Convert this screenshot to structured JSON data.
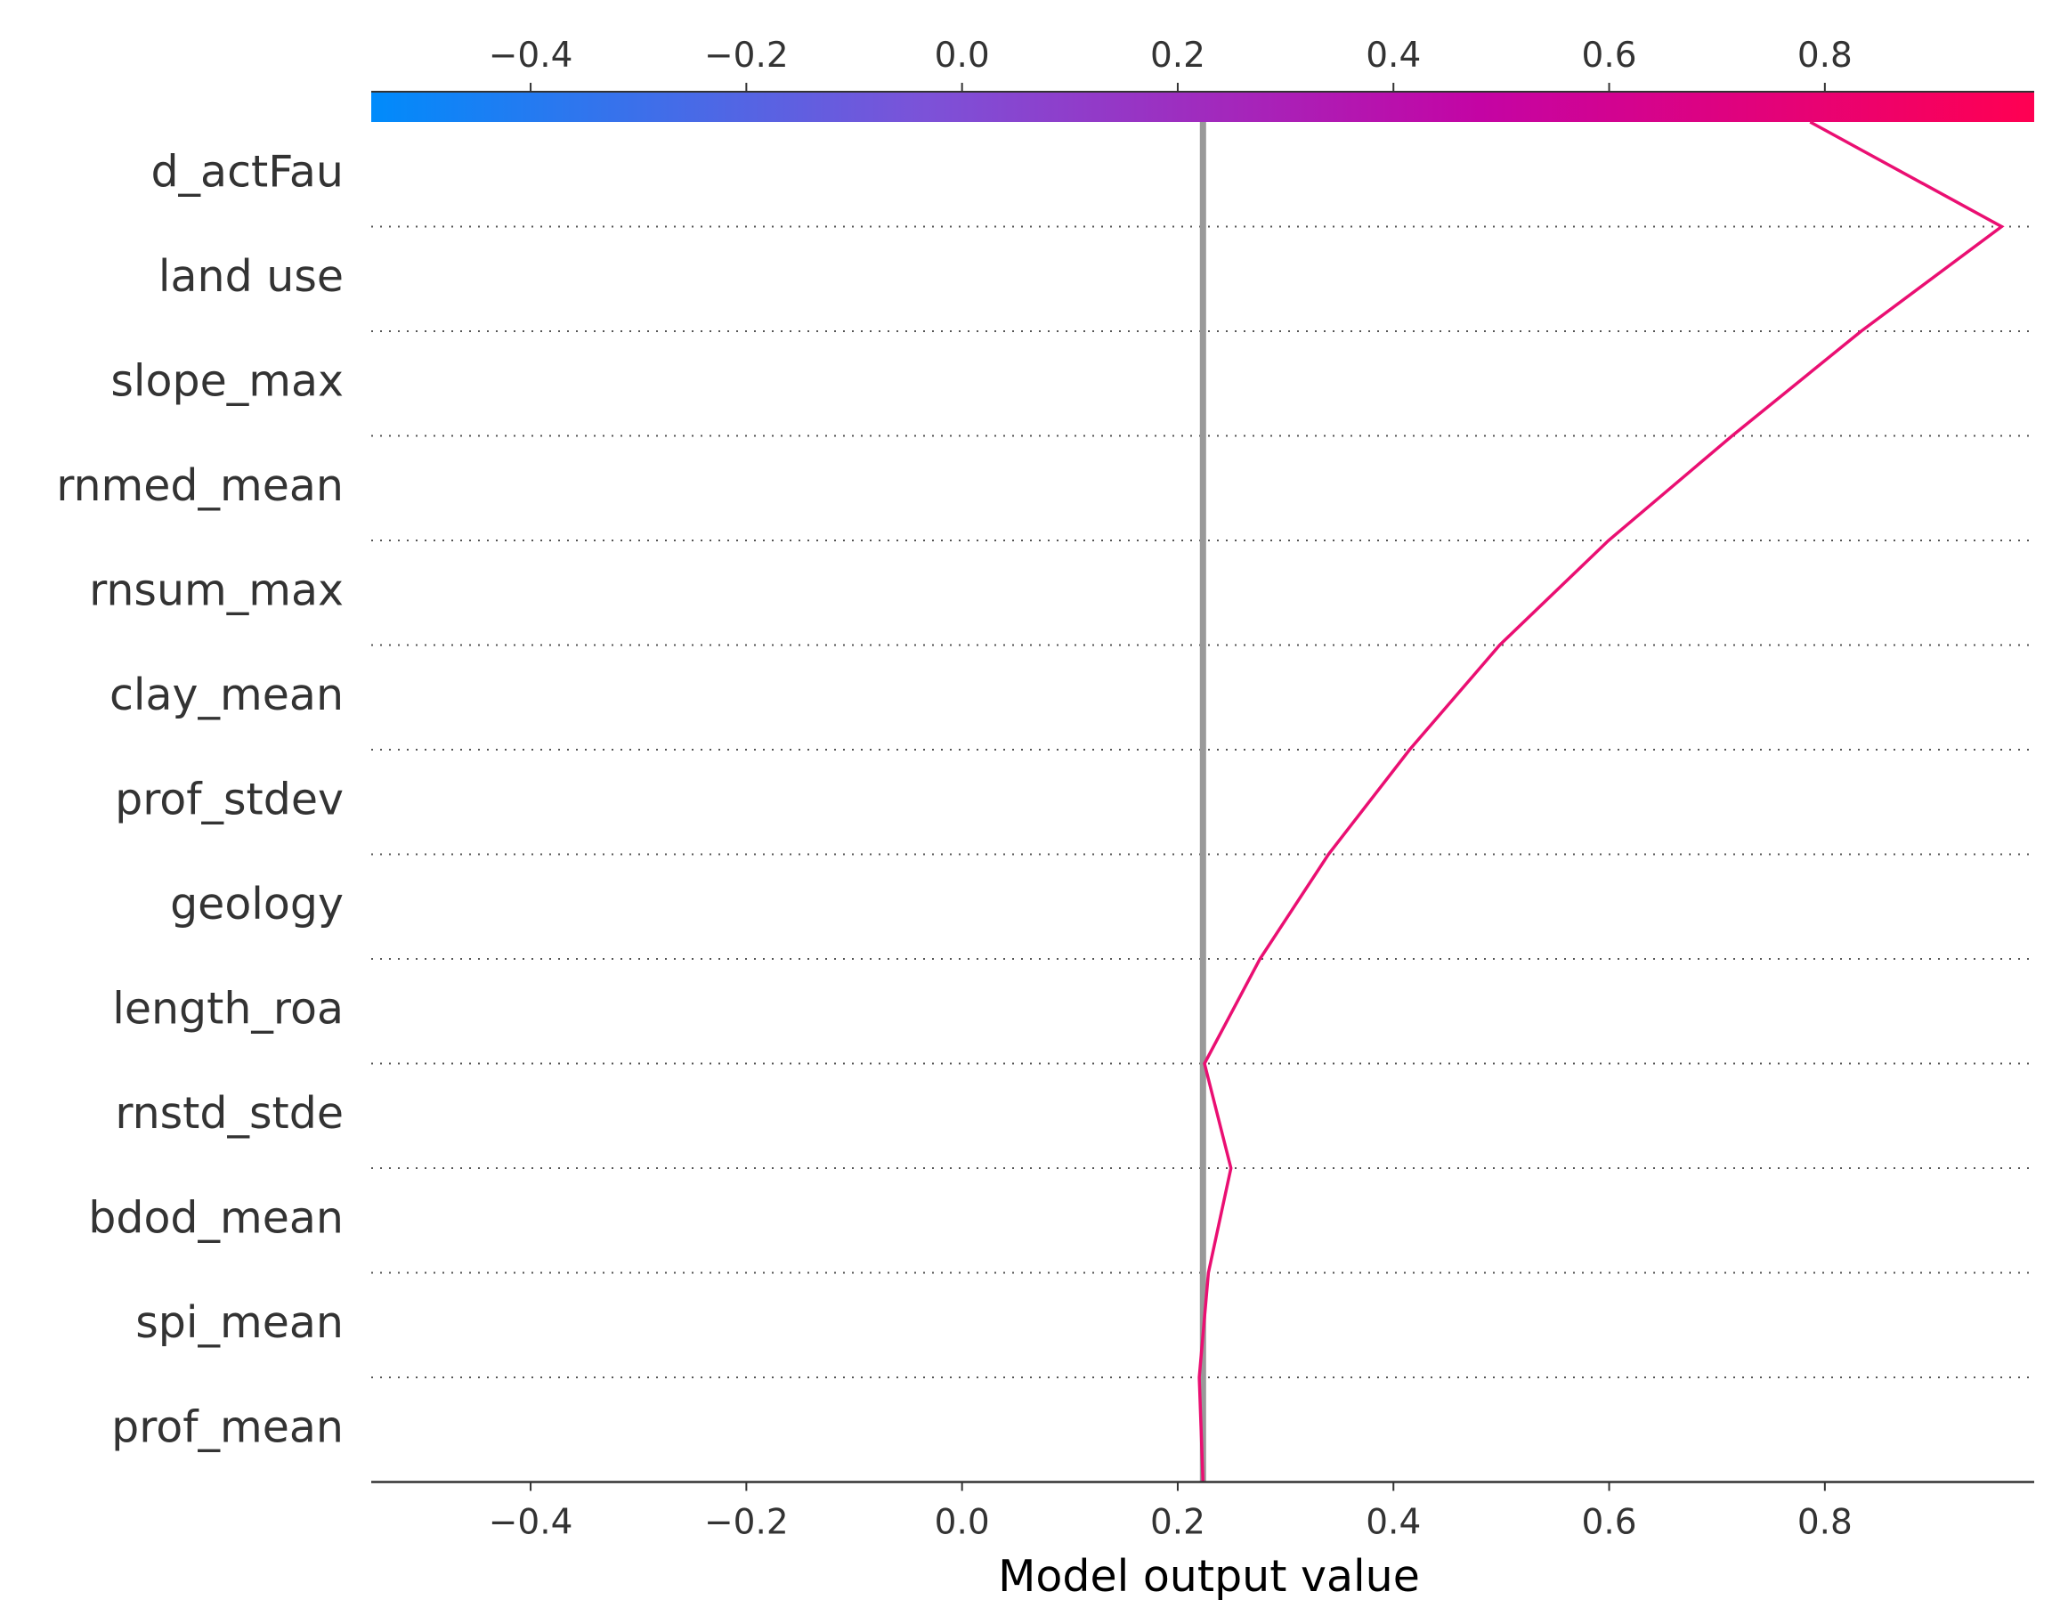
{
  "chart_data": {
    "type": "line",
    "chart_kind": "SHAP decision plot",
    "xlabel": "Model output value",
    "xlim": [
      -0.5478,
      0.9941
    ],
    "xticks": [
      -0.4,
      -0.2,
      0.0,
      0.2,
      0.4,
      0.6,
      0.8
    ],
    "xtick_labels": [
      "−0.4",
      "−0.2",
      "0.0",
      "0.2",
      "0.4",
      "0.6",
      "0.8"
    ],
    "base_value": 0.2234,
    "features": [
      "d_actFau",
      "land use",
      "slope_max",
      "rnmed_mean",
      "rnsum_max",
      "clay_mean",
      "prof_stdev",
      "geology",
      "length_roa",
      "rnstd_stde",
      "bdod_mean",
      "spi_mean",
      "prof_mean"
    ],
    "path_values": [
      0.7863,
      0.9639,
      0.8336,
      0.714,
      0.5995,
      0.4985,
      0.415,
      0.3398,
      0.2762,
      0.2248,
      0.2493,
      0.2284,
      0.2199,
      0.2234
    ],
    "grid": "dotted horizontal separators",
    "colorbar": {
      "position": "top",
      "colors": [
        "#008bfb",
        "#7c52d8",
        "#c404a4",
        "#ff0052"
      ]
    },
    "line_color": "#ea0f72",
    "base_line_color": "#999999"
  }
}
